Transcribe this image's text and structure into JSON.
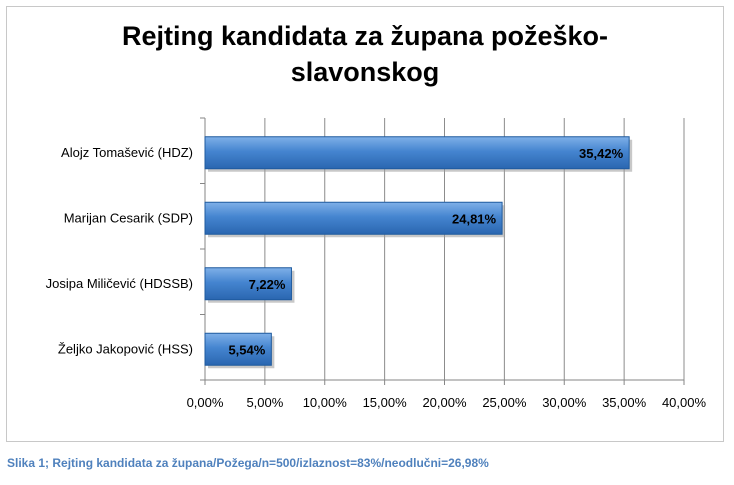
{
  "caption": "Slika 1; Rejting kandidata za župana/Požega/n=500/izlaznost=83%/neodlučni=26,98%",
  "colors": {
    "bar": "#3f7fca",
    "bar_dark": "#1e5a9e",
    "caption": "#4f81bd"
  },
  "chart_data": {
    "type": "bar",
    "orientation": "horizontal",
    "title_lines": [
      "Rejting kandidata za župana požeško-",
      "slavonskog"
    ],
    "categories": [
      "Alojz Tomašević (HDZ)",
      "Marijan Cesarik (SDP)",
      "Josipa Miličević (HDSSB)",
      "Željko Jakopović (HSS)"
    ],
    "values": [
      35.42,
      24.81,
      7.22,
      5.54
    ],
    "value_labels": [
      "35,42%",
      "24,81%",
      "7,22%",
      "5,54%"
    ],
    "xlim": [
      0,
      40
    ],
    "ticks": [
      "0,00%",
      "5,00%",
      "10,00%",
      "15,00%",
      "20,00%",
      "25,00%",
      "30,00%",
      "35,00%",
      "40,00%"
    ],
    "grid": true,
    "legend": "none"
  }
}
